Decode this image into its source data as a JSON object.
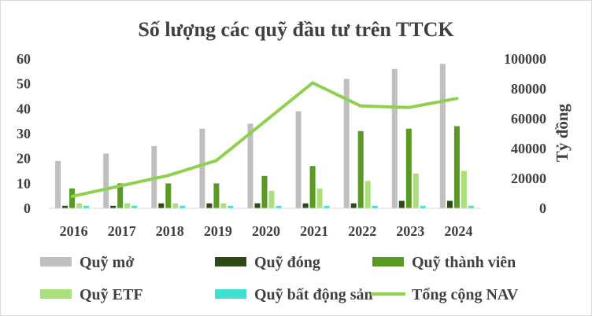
{
  "chart_data": {
    "type": "bar",
    "title": "Số lượng các quỹ đầu tư trên TTCK",
    "categories": [
      "2016",
      "2017",
      "2018",
      "2019",
      "2020",
      "2021",
      "2022",
      "2023",
      "2024"
    ],
    "ylim": [
      0,
      60
    ],
    "y_ticks": [
      "0",
      "10",
      "20",
      "30",
      "40",
      "50",
      "60"
    ],
    "y2label": "Tỷ đồng",
    "y2lim": [
      0,
      100000
    ],
    "y2_ticks": [
      "0",
      "20000",
      "40000",
      "60000",
      "80000",
      "100000"
    ],
    "legend_position": "bottom",
    "grid": false,
    "series": [
      {
        "name": "Quỹ mở",
        "kind": "bar",
        "axis": "left",
        "color": "#bfbfbf",
        "values": [
          19,
          22,
          25,
          32,
          34,
          39,
          52,
          56,
          58
        ]
      },
      {
        "name": "Quỹ đóng",
        "kind": "bar",
        "axis": "left",
        "color": "#2d4a14",
        "values": [
          1,
          1,
          2,
          2,
          2,
          2,
          2,
          3,
          3
        ]
      },
      {
        "name": "Quỹ thành viên",
        "kind": "bar",
        "axis": "left",
        "color": "#5a9a22",
        "values": [
          8,
          10,
          10,
          10,
          13,
          17,
          31,
          32,
          33
        ]
      },
      {
        "name": "Quỹ ETF",
        "kind": "bar",
        "axis": "left",
        "color": "#a9e07a",
        "values": [
          2,
          2,
          2,
          2,
          7,
          8,
          11,
          14,
          15
        ]
      },
      {
        "name": "Quỹ bất động sản",
        "kind": "bar",
        "axis": "left",
        "color": "#40e0d0",
        "values": [
          1,
          1,
          1,
          1,
          1,
          1,
          1,
          1,
          1
        ]
      },
      {
        "name": "Tổng cộng NAV",
        "kind": "line",
        "axis": "right",
        "color": "#8fd14f",
        "values": [
          8000,
          15000,
          22000,
          32000,
          58000,
          84000,
          68500,
          67500,
          73500
        ]
      }
    ]
  }
}
